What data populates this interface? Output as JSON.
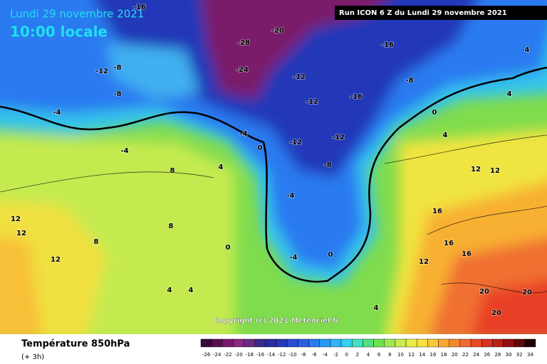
{
  "header": {
    "date": "Lundi 29 novembre 2021",
    "time": "10:00 locale",
    "run": "Run ICON 6 Z du Lundi 29 novembre 2021"
  },
  "copyright": "Copyright (c) 2021 Meteociel.fr",
  "footer": {
    "title": "Température 850hPa",
    "step": "(+ 3h)"
  },
  "legend": {
    "values": [
      -26,
      -24,
      -22,
      -20,
      -18,
      -16,
      -14,
      -12,
      -10,
      -8,
      -6,
      -4,
      -2,
      0,
      2,
      4,
      6,
      8,
      10,
      12,
      14,
      16,
      18,
      20,
      22,
      24,
      26,
      28,
      30,
      32,
      34
    ],
    "colors": [
      "#3a0a3a",
      "#5a1050",
      "#7a1a6a",
      "#8a2a80",
      "#6a2a8a",
      "#3a2a8a",
      "#2a2aa0",
      "#2438b8",
      "#2a4ad0",
      "#2a60e0",
      "#2a7af0",
      "#2a98f4",
      "#30b4f4",
      "#34d0ec",
      "#40e0c0",
      "#50e080",
      "#70e050",
      "#a0e850",
      "#c8ec50",
      "#e8ec48",
      "#f8e040",
      "#f8c838",
      "#f8a830",
      "#f48830",
      "#f06830",
      "#e84828",
      "#d83020",
      "#b82018",
      "#901010",
      "#600808",
      "#200000"
    ]
  },
  "contour_labels": [
    -16,
    -12,
    -8,
    -8,
    -4,
    -4,
    8,
    12,
    12,
    12,
    8,
    8,
    4,
    0,
    -4,
    0,
    -12,
    -12,
    -12,
    -12,
    -8,
    -4,
    -4,
    0,
    -16,
    -16,
    -8,
    0,
    4,
    12,
    12,
    16,
    16,
    16,
    20,
    20,
    20,
    4,
    4,
    4,
    -28,
    -20,
    -24,
    12,
    4,
    4
  ]
}
